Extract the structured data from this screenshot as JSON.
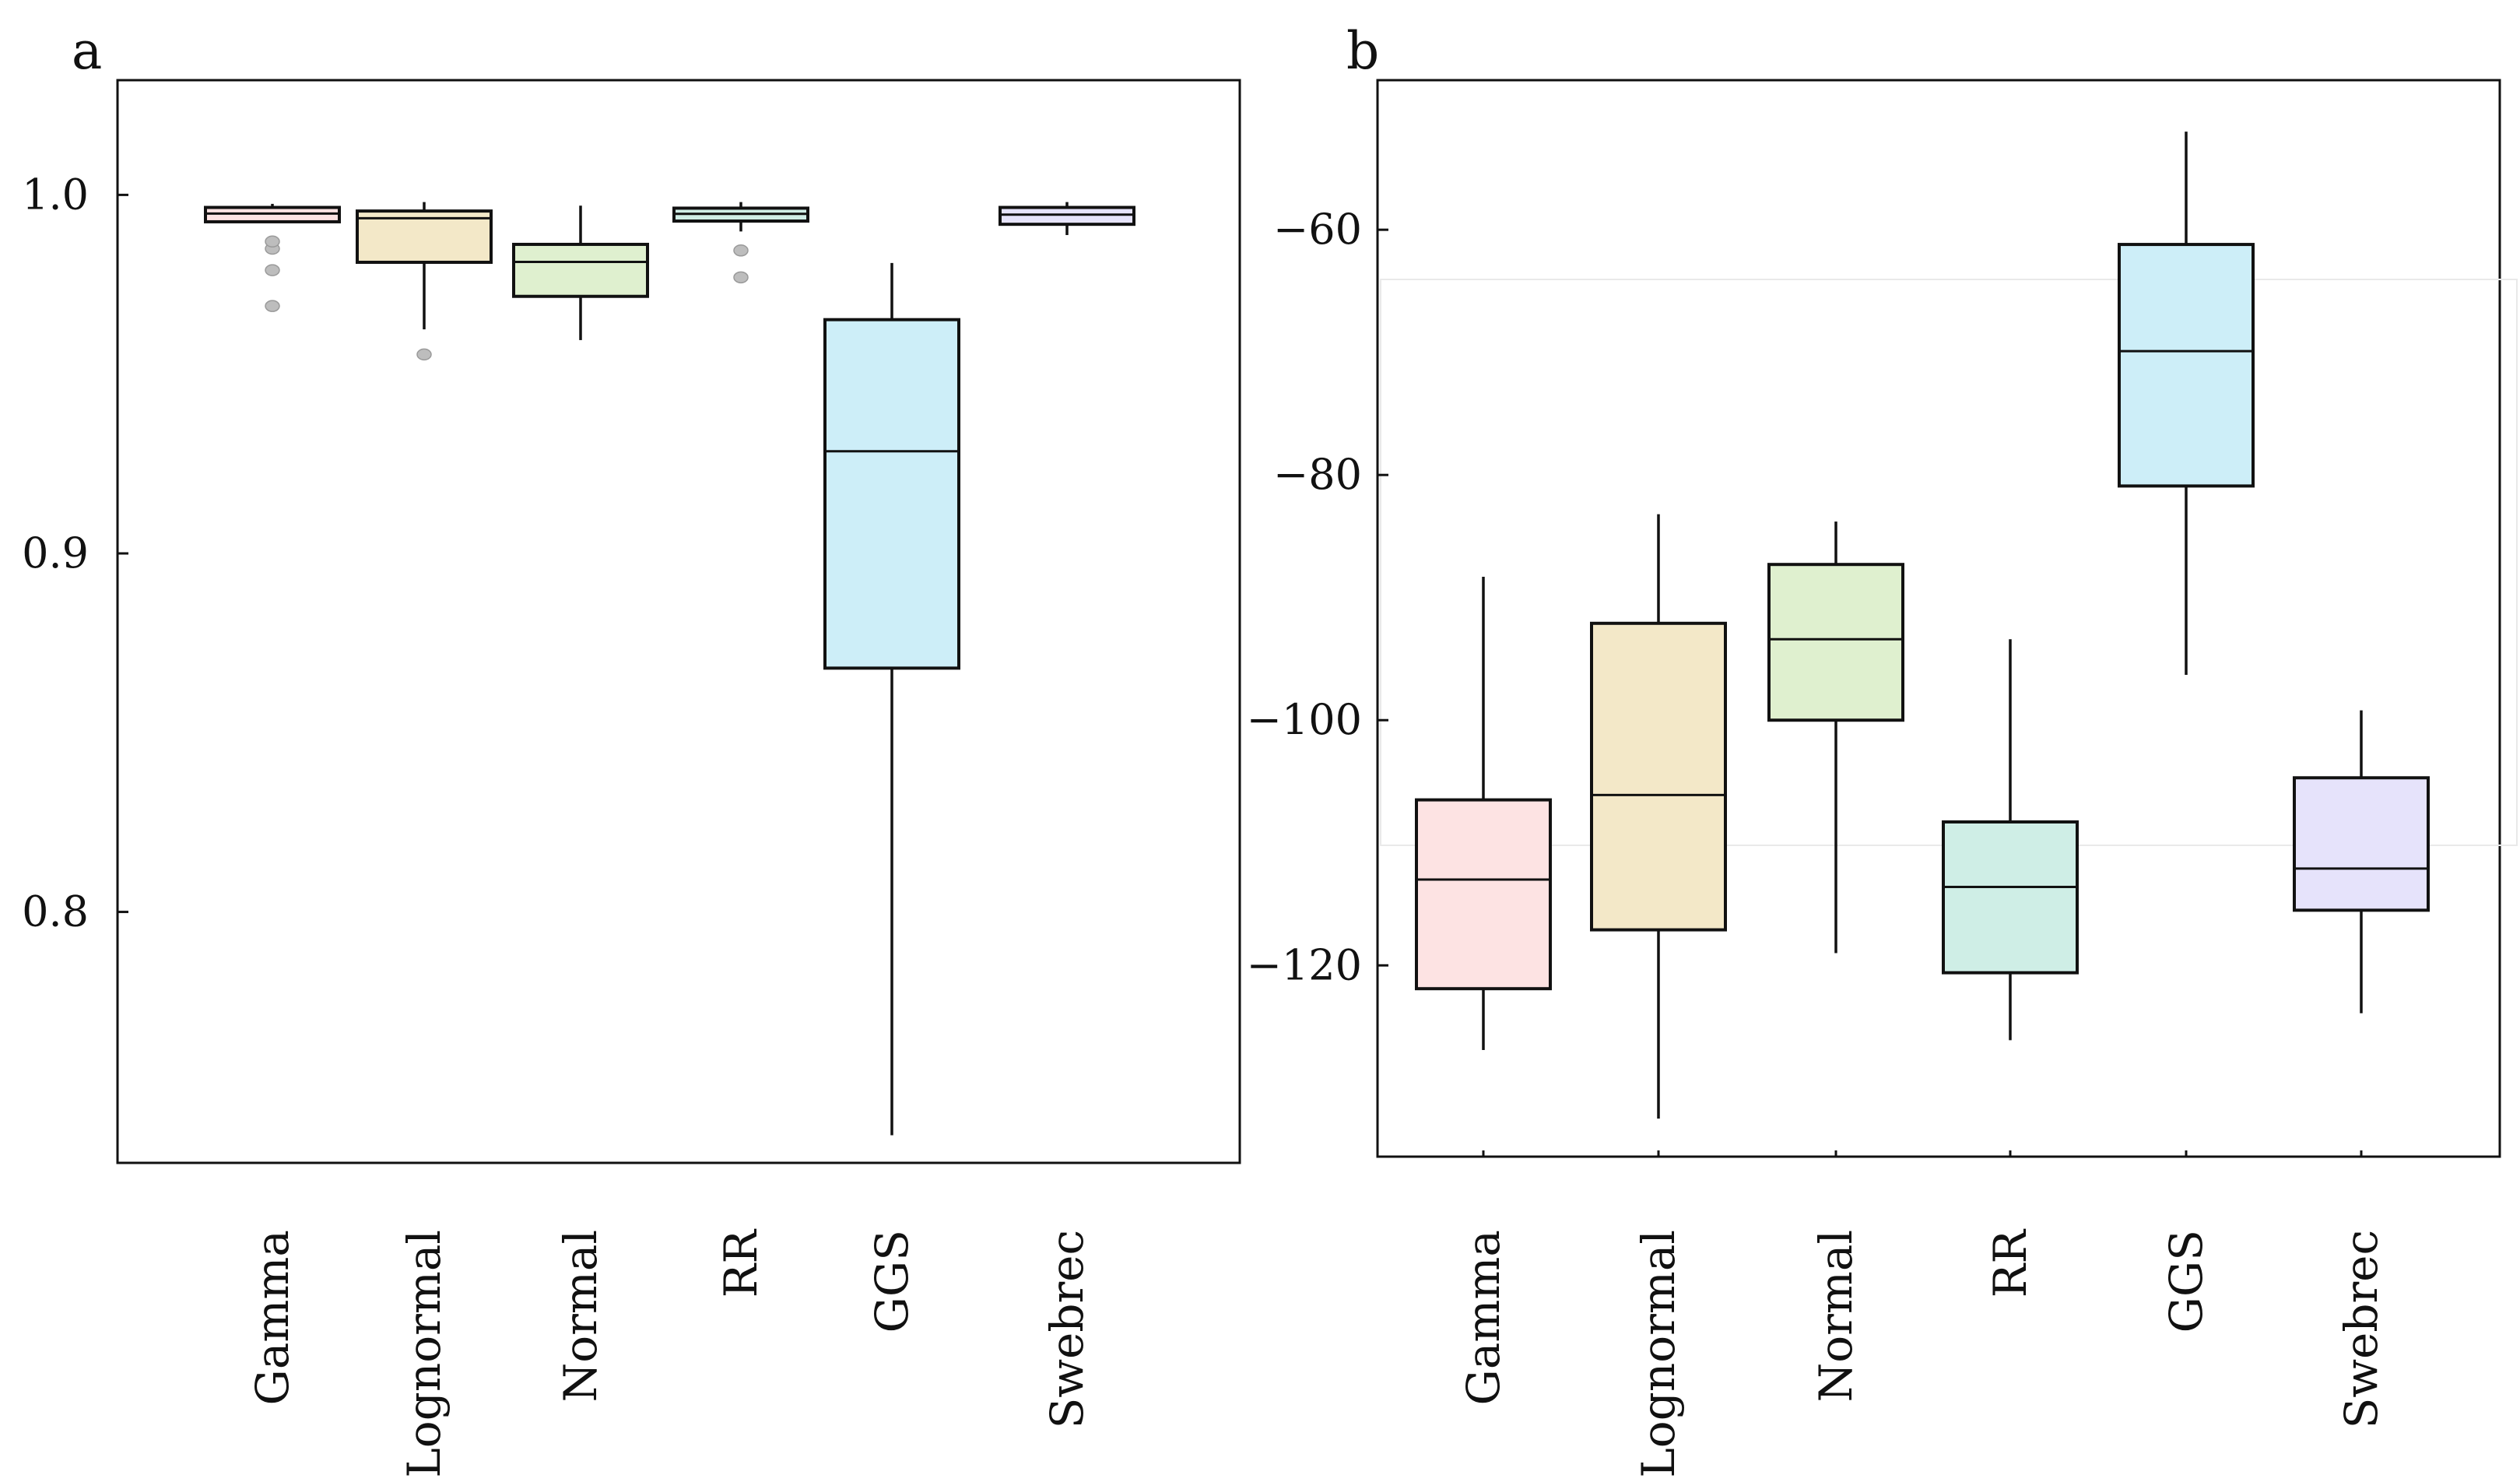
{
  "chart_data": [
    {
      "panel": "a",
      "type": "box",
      "categories": [
        "Gamma",
        "Lognormal",
        "Normal",
        "RR",
        "GGS",
        "Swebrec"
      ],
      "colors": [
        "#fde3e3",
        "#f3e8c8",
        "#dff0cf",
        "#cfeee6",
        "#cdeef8",
        "#e6e3fb"
      ],
      "ylim": [
        0.73,
        1.032
      ],
      "yticks": [
        0.8,
        0.9,
        1.0
      ],
      "yticklabels": [
        "0.8",
        "0.9",
        "1.0"
      ],
      "xtick_marks": false,
      "grid": false,
      "boxes": [
        {
          "name": "Gamma",
          "whislo": 0.9925,
          "q1": 0.9925,
          "med": 0.9948,
          "q3": 0.9965,
          "whishi": 0.9975,
          "fliers": [
            0.969,
            0.979,
            0.985,
            0.987
          ]
        },
        {
          "name": "Lognormal",
          "whislo": 0.9625,
          "q1": 0.9812,
          "med": 0.9935,
          "q3": 0.9955,
          "whishi": 0.998,
          "fliers": [
            0.9555
          ]
        },
        {
          "name": "Normal",
          "whislo": 0.9595,
          "q1": 0.9717,
          "med": 0.9813,
          "q3": 0.9862,
          "whishi": 0.997,
          "fliers": []
        },
        {
          "name": "RR",
          "whislo": 0.9898,
          "q1": 0.9927,
          "med": 0.9947,
          "q3": 0.9963,
          "whishi": 0.998,
          "fliers": [
            0.977,
            0.9845
          ]
        },
        {
          "name": "GGS",
          "whislo": 0.7377,
          "q1": 0.868,
          "med": 0.9285,
          "q3": 0.9652,
          "whishi": 0.981,
          "fliers": []
        },
        {
          "name": "Swebrec",
          "whislo": 0.9888,
          "q1": 0.9918,
          "med": 0.9945,
          "q3": 0.9965,
          "whishi": 0.998,
          "fliers": []
        }
      ]
    },
    {
      "panel": "b",
      "type": "box",
      "categories": [
        "Gamma",
        "Lognormal",
        "Normal",
        "RR",
        "GGS",
        "Swebrec"
      ],
      "colors": [
        "#fde3e3",
        "#f3e8c8",
        "#dff0cf",
        "#cfeee6",
        "#cdeef8",
        "#e6e3fb"
      ],
      "ylim": [
        -135.6,
        -47.8
      ],
      "yticks": [
        -120,
        -100,
        -80,
        -60
      ],
      "yticklabels": [
        "−120",
        "−100",
        "−80",
        "−60"
      ],
      "xtick_marks": true,
      "grid": false,
      "boxes": [
        {
          "name": "Gamma",
          "whislo": -126.9,
          "q1": -121.9,
          "med": -113.0,
          "q3": -106.5,
          "whishi": -88.3,
          "fliers": []
        },
        {
          "name": "Lognormal",
          "whislo": -132.5,
          "q1": -117.1,
          "med": -106.1,
          "q3": -92.1,
          "whishi": -83.2,
          "fliers": []
        },
        {
          "name": "Normal",
          "whislo": -119.0,
          "q1": -100.0,
          "med": -93.4,
          "q3": -87.3,
          "whishi": -83.8,
          "fliers": []
        },
        {
          "name": "RR",
          "whislo": -126.1,
          "q1": -120.6,
          "med": -113.6,
          "q3": -108.3,
          "whishi": -93.4,
          "fliers": []
        },
        {
          "name": "GGS",
          "whislo": -96.3,
          "q1": -80.9,
          "med": -69.9,
          "q3": -61.2,
          "whishi": -52.0,
          "fliers": []
        },
        {
          "name": "Swebrec",
          "whislo": -123.9,
          "q1": -115.5,
          "med": -112.1,
          "q3": -104.7,
          "whishi": -99.2,
          "fliers": []
        }
      ]
    }
  ]
}
